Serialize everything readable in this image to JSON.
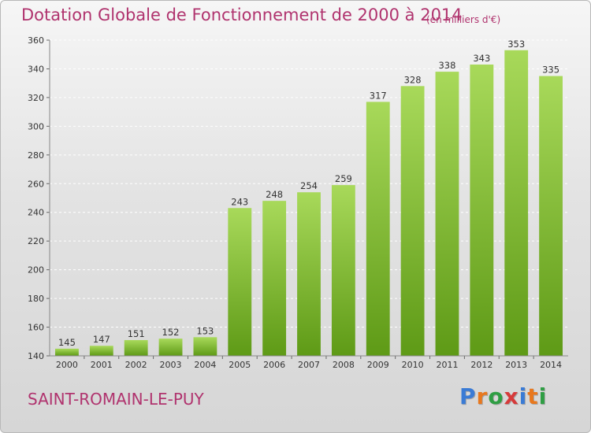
{
  "title": "Dotation Globale de Fonctionnement de 2000 à 2014",
  "unit": "(en milliers d'€)",
  "commune": "SAINT-ROMAIN-LE-PUY",
  "logo": {
    "text": "Proxiti",
    "colors": [
      "#3a7bd5",
      "#e8781e",
      "#2f9e44",
      "#d63a3a",
      "#3a7bd5",
      "#e8781e",
      "#2f9e44"
    ]
  },
  "colors": {
    "title": "#b0336e",
    "bar_top": "#a8d95a",
    "bar_bottom": "#5e9a16",
    "grid": "#ffffff",
    "axis_text": "#333333"
  },
  "chart_data": {
    "type": "bar",
    "title": "Dotation Globale de Fonctionnement de 2000 à 2014",
    "categories": [
      "2000",
      "2001",
      "2002",
      "2003",
      "2004",
      "2005",
      "2006",
      "2007",
      "2008",
      "2009",
      "2010",
      "2011",
      "2012",
      "2013",
      "2014"
    ],
    "values": [
      145,
      147,
      151,
      152,
      153,
      243,
      248,
      254,
      259,
      317,
      328,
      338,
      343,
      353,
      335
    ],
    "ylim": [
      140,
      360
    ],
    "yticks": [
      140,
      160,
      180,
      200,
      220,
      240,
      260,
      280,
      300,
      320,
      340,
      360
    ],
    "grid": true,
    "data_labels": true,
    "xlabel": "",
    "ylabel": ""
  }
}
